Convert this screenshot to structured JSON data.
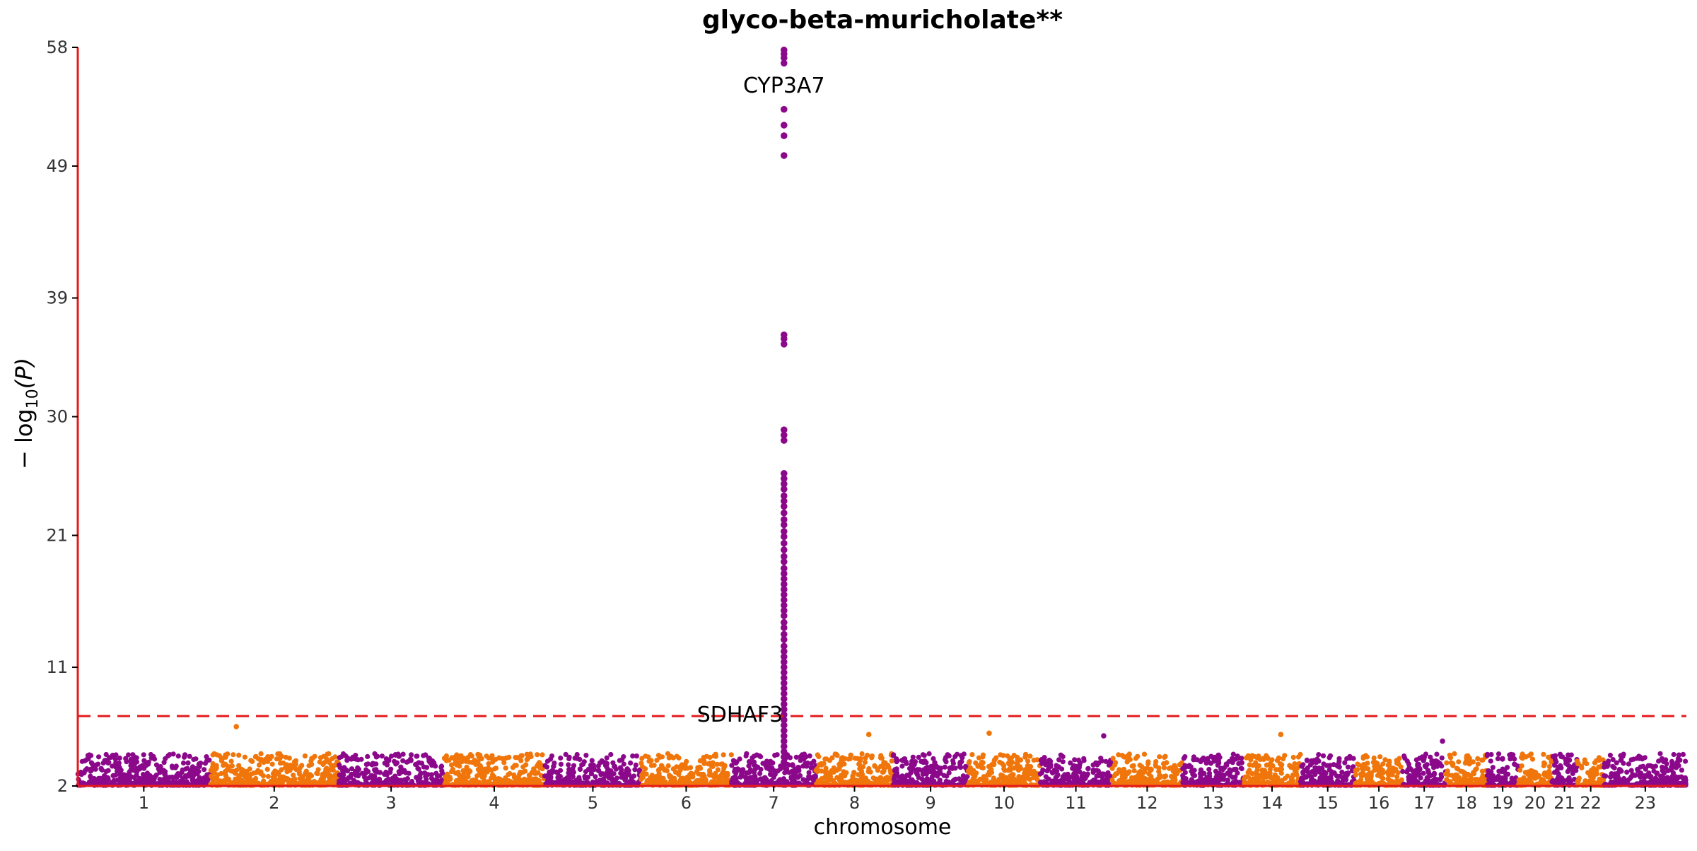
{
  "chart_data": {
    "type": "scatter",
    "subtype": "manhattan",
    "title": "glyco-beta-muricholate**",
    "xlabel": "chromosome",
    "ylabel_prefix": "− log",
    "ylabel_subscript": "10",
    "ylabel_suffix": "(P)",
    "ylim": [
      2,
      58
    ],
    "yticks": [
      2,
      11,
      21,
      30,
      39,
      49,
      58
    ],
    "significance_threshold": 7.3,
    "colors": {
      "purple": "#8b088b",
      "orange": "#f0750a",
      "axis": "#e41a1c",
      "threshold": "#e41a1c"
    },
    "chromosomes": [
      {
        "label": "1",
        "length": 249,
        "color": "purple"
      },
      {
        "label": "2",
        "length": 243,
        "color": "orange"
      },
      {
        "label": "3",
        "length": 198,
        "color": "purple"
      },
      {
        "label": "4",
        "length": 191,
        "color": "orange"
      },
      {
        "label": "5",
        "length": 181,
        "color": "purple"
      },
      {
        "label": "6",
        "length": 171,
        "color": "orange"
      },
      {
        "label": "7",
        "length": 159,
        "color": "purple"
      },
      {
        "label": "8",
        "length": 146,
        "color": "orange"
      },
      {
        "label": "9",
        "length": 141,
        "color": "purple"
      },
      {
        "label": "10",
        "length": 136,
        "color": "orange"
      },
      {
        "label": "11",
        "length": 135,
        "color": "purple"
      },
      {
        "label": "12",
        "length": 134,
        "color": "orange"
      },
      {
        "label": "13",
        "length": 115,
        "color": "purple"
      },
      {
        "label": "14",
        "length": 107,
        "color": "orange"
      },
      {
        "label": "15",
        "length": 103,
        "color": "purple"
      },
      {
        "label": "16",
        "length": 90,
        "color": "orange"
      },
      {
        "label": "17",
        "length": 81,
        "color": "purple"
      },
      {
        "label": "18",
        "length": 78,
        "color": "orange"
      },
      {
        "label": "19",
        "length": 59,
        "color": "purple"
      },
      {
        "label": "20",
        "length": 63,
        "color": "orange"
      },
      {
        "label": "21",
        "length": 48,
        "color": "purple"
      },
      {
        "label": "22",
        "length": 51,
        "color": "orange"
      },
      {
        "label": "23",
        "length": 155,
        "color": "purple"
      }
    ],
    "peak_points": [
      {
        "chr": "7",
        "pos": 99,
        "values": [
          57.8,
          57.5,
          57.2,
          56.8,
          53.3,
          52.1,
          51.3,
          49.8,
          36.2,
          35.9,
          35.5,
          29.0,
          28.6,
          28.2,
          25.7,
          25.3,
          24.9,
          24.5,
          24.0,
          23.6,
          23.2,
          22.7,
          22.2,
          21.8,
          21.3,
          20.9,
          20.4,
          19.9,
          19.4,
          19.0,
          18.5,
          18.1,
          17.7,
          17.3,
          16.9,
          16.5,
          16.1,
          15.7,
          15.3,
          14.9,
          14.4,
          14.0,
          13.5,
          13.1,
          12.6,
          12.2,
          11.8,
          11.4,
          11.0,
          10.6,
          10.2,
          9.8,
          9.4,
          9.0,
          8.6,
          8.2,
          7.8,
          7.4,
          7.0,
          6.6,
          6.2,
          5.8,
          5.4,
          5.0,
          4.6,
          4.2,
          3.8
        ]
      }
    ],
    "notable_points": [
      {
        "chr": "2",
        "pos": 50,
        "value": 6.5
      },
      {
        "chr": "10",
        "pos": 40,
        "value": 6.0
      },
      {
        "chr": "11",
        "pos": 120,
        "value": 5.8
      },
      {
        "chr": "14",
        "pos": 70,
        "value": 5.9
      },
      {
        "chr": "8",
        "pos": 100,
        "value": 5.9
      },
      {
        "chr": "17",
        "pos": 75,
        "value": 5.4
      }
    ],
    "annotations": [
      {
        "text": "CYP3A7",
        "chr": "7",
        "pos": 99,
        "value": 55.0,
        "anchor": "middle"
      },
      {
        "text": "SDHAF3",
        "chr": "7",
        "pos": 97,
        "value": 7.3,
        "anchor": "end"
      }
    ]
  }
}
